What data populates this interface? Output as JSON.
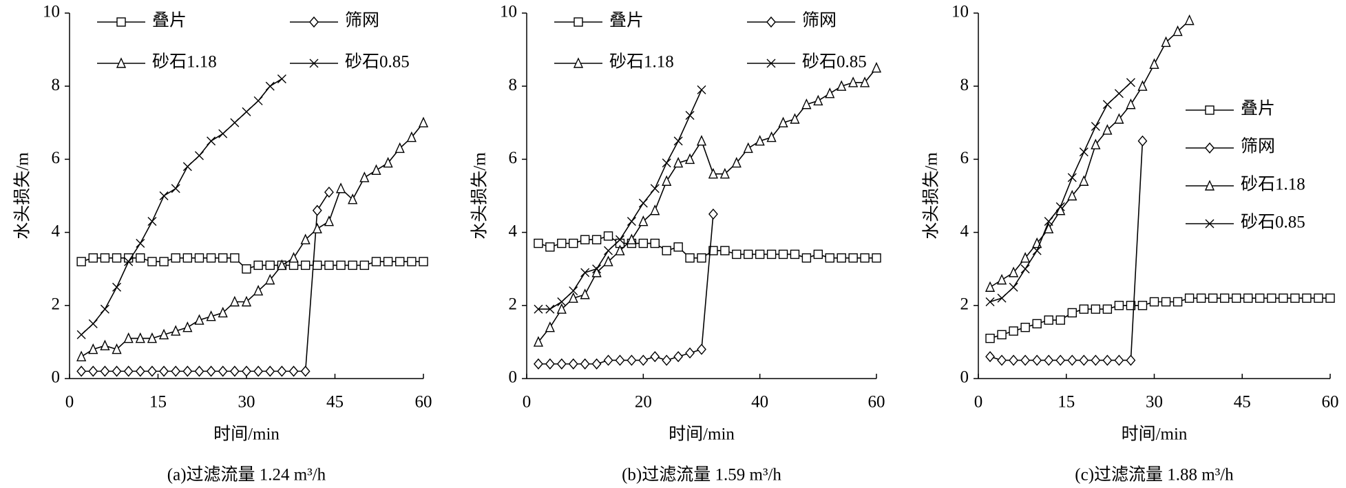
{
  "chart_data": [
    {
      "type": "line",
      "title": "(a)过滤流量 1.24 m³/h",
      "xlabel": "时间/min",
      "ylabel": "水头损失/m",
      "xlim": [
        0,
        60
      ],
      "xticks": [
        0,
        15,
        30,
        45,
        60
      ],
      "ylim": [
        0,
        10
      ],
      "yticks": [
        0,
        2,
        4,
        6,
        8,
        10
      ],
      "legend": "top",
      "series": [
        {
          "name": "叠片",
          "color": "#000000",
          "marker": "square",
          "x": [
            2,
            4,
            6,
            8,
            10,
            12,
            14,
            16,
            18,
            20,
            22,
            24,
            26,
            28,
            30,
            32,
            34,
            36,
            38,
            40,
            42,
            44,
            46,
            48,
            50,
            52,
            54,
            56,
            58,
            60
          ],
          "values": [
            3.2,
            3.3,
            3.3,
            3.3,
            3.3,
            3.3,
            3.2,
            3.2,
            3.3,
            3.3,
            3.3,
            3.3,
            3.3,
            3.3,
            3.0,
            3.1,
            3.1,
            3.1,
            3.1,
            3.1,
            3.1,
            3.1,
            3.1,
            3.1,
            3.1,
            3.2,
            3.2,
            3.2,
            3.2,
            3.2
          ]
        },
        {
          "name": "筛网",
          "color": "#000000",
          "marker": "diamond",
          "x": [
            2,
            4,
            6,
            8,
            10,
            12,
            14,
            16,
            18,
            20,
            22,
            24,
            26,
            28,
            30,
            32,
            34,
            36,
            38,
            40,
            42,
            44
          ],
          "values": [
            0.2,
            0.2,
            0.2,
            0.2,
            0.2,
            0.2,
            0.2,
            0.2,
            0.2,
            0.2,
            0.2,
            0.2,
            0.2,
            0.2,
            0.2,
            0.2,
            0.2,
            0.2,
            0.2,
            0.2,
            4.6,
            5.1
          ]
        },
        {
          "name": "砂石1.18",
          "color": "#000000",
          "marker": "triangle",
          "x": [
            2,
            4,
            6,
            8,
            10,
            12,
            14,
            16,
            18,
            20,
            22,
            24,
            26,
            28,
            30,
            32,
            34,
            36,
            38,
            40,
            42,
            44,
            46,
            48,
            50,
            52,
            54,
            56,
            58,
            60
          ],
          "values": [
            0.6,
            0.8,
            0.9,
            0.8,
            1.1,
            1.1,
            1.1,
            1.2,
            1.3,
            1.4,
            1.6,
            1.7,
            1.8,
            2.1,
            2.1,
            2.4,
            2.7,
            3.1,
            3.3,
            3.8,
            4.1,
            4.3,
            5.2,
            4.9,
            5.5,
            5.7,
            5.9,
            6.3,
            6.6,
            7.0
          ]
        },
        {
          "name": "砂石0.85",
          "color": "#000000",
          "marker": "cross",
          "x": [
            2,
            4,
            6,
            8,
            10,
            12,
            14,
            16,
            18,
            20,
            22,
            24,
            26,
            28,
            30,
            32,
            34,
            36
          ],
          "values": [
            1.2,
            1.5,
            1.9,
            2.5,
            3.2,
            3.7,
            4.3,
            5.0,
            5.2,
            5.8,
            6.1,
            6.5,
            6.7,
            7.0,
            7.3,
            7.6,
            8.0,
            8.2
          ]
        }
      ]
    },
    {
      "type": "line",
      "title": "(b)过滤流量 1.59 m³/h",
      "xlabel": "时间/min",
      "ylabel": "水头损失/m",
      "xlim": [
        0,
        60
      ],
      "xticks": [
        0,
        20,
        40,
        60
      ],
      "ylim": [
        0,
        10
      ],
      "yticks": [
        0,
        2,
        4,
        6,
        8,
        10
      ],
      "legend": "top",
      "series": [
        {
          "name": "叠片",
          "color": "#000000",
          "marker": "square",
          "x": [
            2,
            4,
            6,
            8,
            10,
            12,
            14,
            16,
            18,
            20,
            22,
            24,
            26,
            28,
            30,
            32,
            34,
            36,
            38,
            40,
            42,
            44,
            46,
            48,
            50,
            52,
            54,
            56,
            58,
            60
          ],
          "values": [
            3.7,
            3.6,
            3.7,
            3.7,
            3.8,
            3.8,
            3.9,
            3.7,
            3.7,
            3.7,
            3.7,
            3.5,
            3.6,
            3.3,
            3.3,
            3.5,
            3.5,
            3.4,
            3.4,
            3.4,
            3.4,
            3.4,
            3.4,
            3.3,
            3.4,
            3.3,
            3.3,
            3.3,
            3.3,
            3.3
          ]
        },
        {
          "name": "筛网",
          "color": "#000000",
          "marker": "diamond",
          "x": [
            2,
            4,
            6,
            8,
            10,
            12,
            14,
            16,
            18,
            20,
            22,
            24,
            26,
            28,
            30,
            32
          ],
          "values": [
            0.4,
            0.4,
            0.4,
            0.4,
            0.4,
            0.4,
            0.5,
            0.5,
            0.5,
            0.5,
            0.6,
            0.5,
            0.6,
            0.7,
            0.8,
            4.5
          ]
        },
        {
          "name": "砂石1.18",
          "color": "#000000",
          "marker": "triangle",
          "x": [
            2,
            4,
            6,
            8,
            10,
            12,
            14,
            16,
            18,
            20,
            22,
            24,
            26,
            28,
            30,
            32,
            34,
            36,
            38,
            40,
            42,
            44,
            46,
            48,
            50,
            52,
            54,
            56,
            58,
            60
          ],
          "values": [
            1.0,
            1.4,
            1.9,
            2.2,
            2.3,
            2.9,
            3.2,
            3.5,
            3.8,
            4.3,
            4.6,
            5.4,
            5.9,
            6.0,
            6.5,
            5.6,
            5.6,
            5.9,
            6.3,
            6.5,
            6.6,
            7.0,
            7.1,
            7.5,
            7.6,
            7.8,
            8.0,
            8.1,
            8.1,
            8.5
          ]
        },
        {
          "name": "砂石0.85",
          "color": "#000000",
          "marker": "cross",
          "x": [
            2,
            4,
            6,
            8,
            10,
            12,
            14,
            16,
            18,
            20,
            22,
            24,
            26,
            28,
            30
          ],
          "values": [
            1.9,
            1.9,
            2.1,
            2.4,
            2.9,
            3.0,
            3.5,
            3.8,
            4.3,
            4.8,
            5.2,
            5.9,
            6.5,
            7.2,
            7.9
          ]
        }
      ]
    },
    {
      "type": "line",
      "title": "(c)过滤流量 1.88 m³/h",
      "xlabel": "时间/min",
      "ylabel": "水头损失/m",
      "xlim": [
        0,
        60
      ],
      "xticks": [
        0,
        15,
        30,
        45,
        60
      ],
      "ylim": [
        0,
        10
      ],
      "yticks": [
        0,
        2,
        4,
        6,
        8,
        10
      ],
      "legend": "right",
      "series": [
        {
          "name": "叠片",
          "color": "#000000",
          "marker": "square",
          "x": [
            2,
            4,
            6,
            8,
            10,
            12,
            14,
            16,
            18,
            20,
            22,
            24,
            26,
            28,
            30,
            32,
            34,
            36,
            38,
            40,
            42,
            44,
            46,
            48,
            50,
            52,
            54,
            56,
            58,
            60
          ],
          "values": [
            1.1,
            1.2,
            1.3,
            1.4,
            1.5,
            1.6,
            1.6,
            1.8,
            1.9,
            1.9,
            1.9,
            2.0,
            2.0,
            2.0,
            2.1,
            2.1,
            2.1,
            2.2,
            2.2,
            2.2,
            2.2,
            2.2,
            2.2,
            2.2,
            2.2,
            2.2,
            2.2,
            2.2,
            2.2,
            2.2
          ]
        },
        {
          "name": "筛网",
          "color": "#000000",
          "marker": "diamond",
          "x": [
            2,
            4,
            6,
            8,
            10,
            12,
            14,
            16,
            18,
            20,
            22,
            24,
            26,
            28
          ],
          "values": [
            0.6,
            0.5,
            0.5,
            0.5,
            0.5,
            0.5,
            0.5,
            0.5,
            0.5,
            0.5,
            0.5,
            0.5,
            0.5,
            6.5
          ]
        },
        {
          "name": "砂石1.18",
          "color": "#000000",
          "marker": "triangle",
          "x": [
            2,
            4,
            6,
            8,
            10,
            12,
            14,
            16,
            18,
            20,
            22,
            24,
            26,
            28,
            30,
            32,
            34,
            36
          ],
          "values": [
            2.5,
            2.7,
            2.9,
            3.3,
            3.7,
            4.1,
            4.6,
            5.0,
            5.4,
            6.4,
            6.8,
            7.1,
            7.5,
            8.0,
            8.6,
            9.2,
            9.5,
            9.8
          ]
        },
        {
          "name": "砂石0.85",
          "color": "#000000",
          "marker": "cross",
          "x": [
            2,
            4,
            6,
            8,
            10,
            12,
            14,
            16,
            18,
            20,
            22,
            24,
            26
          ],
          "values": [
            2.1,
            2.2,
            2.5,
            3.0,
            3.5,
            4.3,
            4.7,
            5.5,
            6.2,
            6.9,
            7.5,
            7.8,
            8.1
          ]
        }
      ]
    }
  ]
}
